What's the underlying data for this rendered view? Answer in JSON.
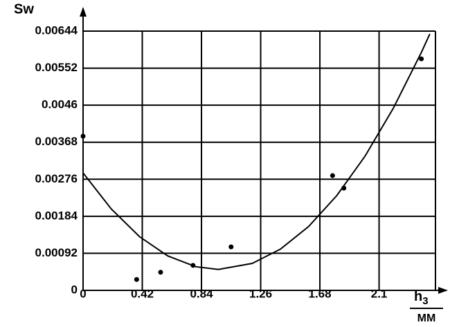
{
  "chart_data": {
    "type": "scatter",
    "y_label": "Sw",
    "x_label": "h",
    "x_label_sub": "3",
    "x_unit": "MM",
    "points": {
      "x": [
        0,
        0.38,
        0.55,
        0.78,
        1.05,
        1.77,
        1.85,
        2.4
      ],
      "values": [
        0.00383,
        0.00027,
        0.00045,
        0.00062,
        0.00108,
        0.00285,
        0.00254,
        0.00575
      ],
      "color": "#000000"
    },
    "curve": {
      "x": [
        0,
        0.2,
        0.4,
        0.6,
        0.8,
        0.96,
        1.2,
        1.4,
        1.6,
        1.8,
        2.0,
        2.2,
        2.4,
        2.46
      ],
      "values": [
        0.002916,
        0.002022,
        0.001335,
        0.000857,
        0.000587,
        0.00052,
        0.00067,
        0.001023,
        0.001585,
        0.002355,
        0.003332,
        0.004518,
        0.005911,
        0.00637
      ],
      "color": "#000000"
    },
    "xlim": [
      0,
      2.5
    ],
    "ylim": [
      0,
      0.00644
    ],
    "xticks": [
      0,
      0.42,
      0.84,
      1.26,
      1.68,
      2.1
    ],
    "yticks": [
      0,
      0.00092,
      0.00184,
      0.00276,
      0.00368,
      0.0046,
      0.00552,
      0.00644
    ],
    "grid": true
  }
}
